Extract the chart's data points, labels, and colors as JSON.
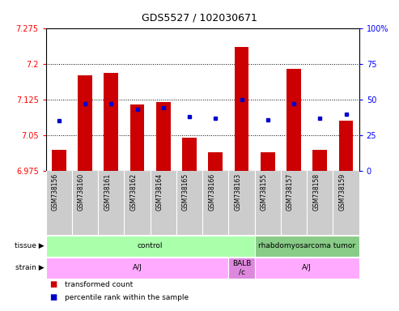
{
  "title": "GDS5527 / 102030671",
  "samples": [
    "GSM738156",
    "GSM738160",
    "GSM738161",
    "GSM738162",
    "GSM738164",
    "GSM738165",
    "GSM738166",
    "GSM738163",
    "GSM738155",
    "GSM738157",
    "GSM738158",
    "GSM738159"
  ],
  "bar_tops": [
    7.02,
    7.175,
    7.18,
    7.115,
    7.12,
    7.045,
    7.015,
    7.235,
    7.015,
    7.19,
    7.02,
    7.08
  ],
  "bar_bottom": 6.975,
  "blue_dots": [
    35,
    47,
    47,
    43,
    44,
    38,
    37,
    50,
    36,
    47,
    37,
    40
  ],
  "ylim_left": [
    6.975,
    7.275
  ],
  "ylim_right": [
    0,
    100
  ],
  "yticks_left": [
    6.975,
    7.05,
    7.125,
    7.2,
    7.275
  ],
  "yticks_right": [
    0,
    25,
    50,
    75,
    100
  ],
  "bar_color": "#cc0000",
  "dot_color": "#0000cc",
  "tissue_groups": [
    {
      "label": "control",
      "start": 0,
      "end": 7,
      "color": "#aaffaa"
    },
    {
      "label": "rhabdomyosarcoma tumor",
      "start": 8,
      "end": 11,
      "color": "#88cc88"
    }
  ],
  "strain_groups": [
    {
      "label": "A/J",
      "start": 0,
      "end": 6,
      "color": "#ffaaff"
    },
    {
      "label": "BALB\n/c",
      "start": 7,
      "end": 7,
      "color": "#dd88dd"
    },
    {
      "label": "A/J",
      "start": 8,
      "end": 11,
      "color": "#ffaaff"
    }
  ],
  "legend_items": [
    {
      "color": "#cc0000",
      "label": "transformed count"
    },
    {
      "color": "#0000cc",
      "label": "percentile rank within the sample"
    }
  ]
}
